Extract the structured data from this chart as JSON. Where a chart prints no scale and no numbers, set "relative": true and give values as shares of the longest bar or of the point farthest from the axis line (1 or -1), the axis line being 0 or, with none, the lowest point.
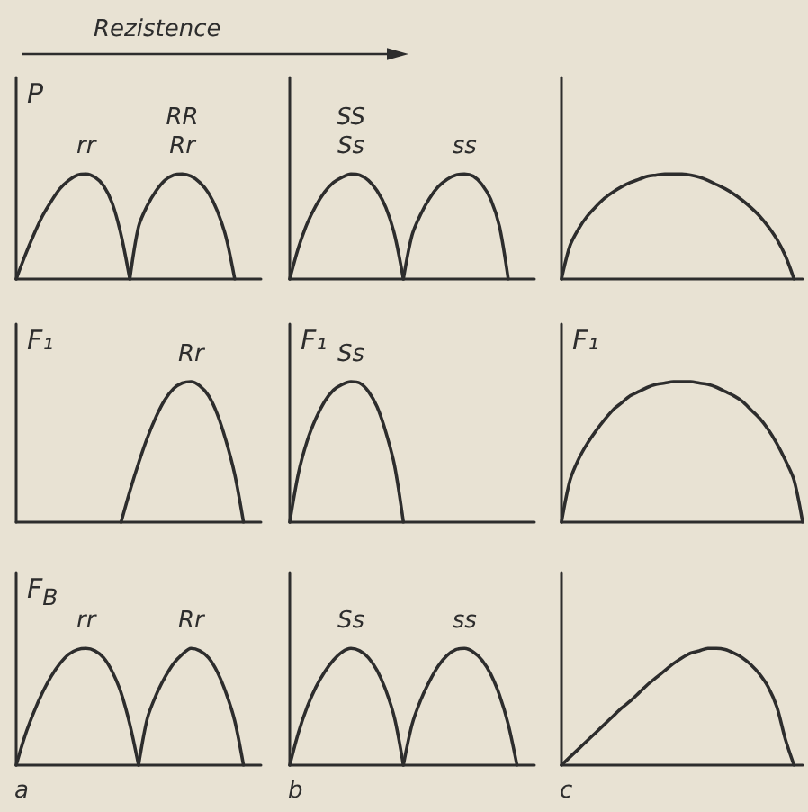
{
  "chart_data": [
    {
      "type": "line",
      "relative": true,
      "marker": "none",
      "title": "P",
      "annotations": [
        "Rezistence"
      ],
      "categories": [
        null,
        null,
        null,
        null,
        null,
        null,
        null,
        null,
        null,
        null,
        null,
        null,
        null,
        null,
        null,
        null,
        null,
        null,
        null,
        null,
        null,
        null,
        null,
        null,
        null,
        null,
        null,
        null,
        null
      ],
      "series": [
        {
          "name": "rr",
          "color": "#2d2d2d",
          "values": [
            0,
            0.22,
            0.42,
            0.6,
            0.74,
            0.86,
            0.94,
            0.99,
            1,
            0.97,
            0.89,
            0.72,
            0.42,
            0,
            null,
            null,
            null,
            null,
            null,
            null,
            null,
            null,
            null,
            null,
            null,
            null,
            null,
            null,
            null
          ]
        },
        {
          "name": "RR\nRr",
          "color": "#2d2d2d",
          "values": [
            null,
            null,
            null,
            null,
            null,
            null,
            null,
            null,
            null,
            null,
            null,
            null,
            null,
            0,
            0.5,
            0.7,
            0.84,
            0.94,
            0.99,
            1,
            0.98,
            0.92,
            0.82,
            0.65,
            0.4,
            0,
            null,
            null,
            null
          ]
        }
      ]
    },
    {
      "type": "line",
      "relative": true,
      "marker": "none",
      "categories": [
        null,
        null,
        null,
        null,
        null,
        null,
        null,
        null,
        null,
        null,
        null,
        null,
        null,
        null,
        null,
        null,
        null,
        null,
        null,
        null,
        null,
        null,
        null,
        null,
        null,
        null,
        null,
        null,
        null
      ],
      "series": [
        {
          "name": "SS\nSs",
          "color": "#2d2d2d",
          "values": [
            0,
            0.3,
            0.53,
            0.7,
            0.83,
            0.92,
            0.97,
            1,
            0.99,
            0.94,
            0.84,
            0.68,
            0.42,
            0,
            null,
            null,
            null,
            null,
            null,
            null,
            null,
            null,
            null,
            null,
            null,
            null,
            null,
            null,
            null
          ]
        },
        {
          "name": "ss",
          "color": "#2d2d2d",
          "values": [
            null,
            null,
            null,
            null,
            null,
            null,
            null,
            null,
            null,
            null,
            null,
            null,
            null,
            0,
            0.42,
            0.62,
            0.77,
            0.88,
            0.95,
            0.99,
            1,
            0.98,
            0.9,
            0.76,
            0.5,
            0,
            null,
            null,
            null
          ]
        }
      ]
    },
    {
      "type": "line",
      "relative": true,
      "marker": "none",
      "categories": [
        null,
        null,
        null,
        null,
        null,
        null,
        null,
        null,
        null,
        null,
        null,
        null,
        null,
        null,
        null,
        null,
        null,
        null,
        null,
        null,
        null,
        null,
        null,
        null,
        null,
        null,
        null,
        null,
        null
      ],
      "series": [
        {
          "color": "#2d2d2d",
          "values": [
            0,
            0.32,
            0.48,
            0.6,
            0.69,
            0.77,
            0.83,
            0.88,
            0.92,
            0.95,
            0.98,
            0.99,
            1,
            1,
            1,
            0.99,
            0.97,
            0.94,
            0.9,
            0.86,
            0.81,
            0.75,
            0.68,
            0.6,
            0.5,
            0.38,
            0.22,
            0,
            null
          ]
        }
      ]
    },
    {
      "type": "line",
      "relative": true,
      "marker": "none",
      "title": "F₁",
      "categories": [
        null,
        null,
        null,
        null,
        null,
        null,
        null,
        null,
        null,
        null,
        null,
        null,
        null,
        null,
        null,
        null,
        null,
        null,
        null,
        null,
        null,
        null,
        null,
        null,
        null,
        null,
        null,
        null,
        null
      ],
      "series": [
        {
          "name": "Rr",
          "color": "#2d2d2d",
          "values": [
            null,
            null,
            null,
            null,
            null,
            null,
            null,
            null,
            null,
            null,
            null,
            null,
            0,
            0.22,
            0.42,
            0.6,
            0.75,
            0.87,
            0.95,
            0.99,
            1,
            0.97,
            0.9,
            0.77,
            0.58,
            0.34,
            0,
            null,
            null
          ]
        }
      ]
    },
    {
      "type": "line",
      "relative": true,
      "marker": "none",
      "title": "F₁",
      "categories": [
        null,
        null,
        null,
        null,
        null,
        null,
        null,
        null,
        null,
        null,
        null,
        null,
        null,
        null,
        null,
        null,
        null,
        null,
        null,
        null,
        null,
        null,
        null,
        null,
        null,
        null,
        null,
        null,
        null
      ],
      "series": [
        {
          "name": "Ss",
          "color": "#2d2d2d",
          "values": [
            0,
            0.35,
            0.58,
            0.74,
            0.86,
            0.94,
            0.98,
            1,
            0.99,
            0.93,
            0.82,
            0.64,
            0.4,
            0,
            null,
            null,
            null,
            null,
            null,
            null,
            null,
            null,
            null,
            null,
            null,
            null,
            null,
            null,
            null
          ]
        }
      ]
    },
    {
      "type": "line",
      "relative": true,
      "marker": "none",
      "title": "F₁",
      "categories": [
        null,
        null,
        null,
        null,
        null,
        null,
        null,
        null,
        null,
        null,
        null,
        null,
        null,
        null,
        null,
        null,
        null,
        null,
        null,
        null,
        null,
        null,
        null,
        null,
        null,
        null,
        null,
        null,
        null
      ],
      "series": [
        {
          "color": "#2d2d2d",
          "values": [
            0,
            0.3,
            0.45,
            0.56,
            0.65,
            0.73,
            0.8,
            0.85,
            0.9,
            0.93,
            0.96,
            0.98,
            0.99,
            1,
            1,
            1,
            0.99,
            0.98,
            0.96,
            0.93,
            0.9,
            0.86,
            0.8,
            0.74,
            0.66,
            0.56,
            0.44,
            0.3,
            0
          ]
        }
      ]
    },
    {
      "type": "line",
      "relative": true,
      "marker": "none",
      "title": "F$_{B}$",
      "annotations": [
        "a"
      ],
      "categories": [
        null,
        null,
        null,
        null,
        null,
        null,
        null,
        null,
        null,
        null,
        null,
        null,
        null,
        null,
        null,
        null,
        null,
        null,
        null,
        null,
        null,
        null,
        null,
        null,
        null,
        null,
        null,
        null,
        null
      ],
      "series": [
        {
          "name": "rr",
          "color": "#2d2d2d",
          "values": [
            0,
            0.25,
            0.45,
            0.62,
            0.76,
            0.87,
            0.95,
            0.99,
            1,
            0.98,
            0.92,
            0.8,
            0.62,
            0.35,
            0,
            null,
            null,
            null,
            null,
            null,
            null,
            null,
            null,
            null,
            null,
            null,
            null,
            null,
            null
          ]
        },
        {
          "name": "Rr",
          "color": "#2d2d2d",
          "values": [
            null,
            null,
            null,
            null,
            null,
            null,
            null,
            null,
            null,
            null,
            null,
            null,
            null,
            null,
            0,
            0.4,
            0.6,
            0.75,
            0.87,
            0.95,
            1,
            0.98,
            0.92,
            0.8,
            0.62,
            0.38,
            0,
            null,
            null
          ]
        }
      ]
    },
    {
      "type": "line",
      "relative": true,
      "marker": "none",
      "annotations": [
        "b"
      ],
      "categories": [
        null,
        null,
        null,
        null,
        null,
        null,
        null,
        null,
        null,
        null,
        null,
        null,
        null,
        null,
        null,
        null,
        null,
        null,
        null,
        null,
        null,
        null,
        null,
        null,
        null,
        null,
        null,
        null,
        null
      ],
      "series": [
        {
          "name": "Ss",
          "color": "#2d2d2d",
          "values": [
            0,
            0.28,
            0.5,
            0.67,
            0.8,
            0.9,
            0.97,
            1,
            0.98,
            0.92,
            0.81,
            0.64,
            0.4,
            0,
            null,
            null,
            null,
            null,
            null,
            null,
            null,
            null,
            null,
            null,
            null,
            null,
            null,
            null,
            null
          ]
        },
        {
          "name": "ss",
          "color": "#2d2d2d",
          "values": [
            null,
            null,
            null,
            null,
            null,
            null,
            null,
            null,
            null,
            null,
            null,
            null,
            null,
            0,
            0.35,
            0.56,
            0.72,
            0.85,
            0.94,
            0.99,
            1,
            0.97,
            0.9,
            0.78,
            0.6,
            0.35,
            0,
            null,
            null
          ]
        }
      ]
    },
    {
      "type": "line",
      "relative": true,
      "marker": "none",
      "annotations": [
        "c"
      ],
      "categories": [
        null,
        null,
        null,
        null,
        null,
        null,
        null,
        null,
        null,
        null,
        null,
        null,
        null,
        null,
        null,
        null,
        null,
        null,
        null,
        null,
        null,
        null,
        null,
        null,
        null,
        null,
        null,
        null,
        null
      ],
      "series": [
        {
          "color": "#2d2d2d",
          "values": [
            0,
            0.07,
            0.14,
            0.21,
            0.28,
            0.35,
            0.42,
            0.49,
            0.55,
            0.62,
            0.69,
            0.75,
            0.81,
            0.87,
            0.92,
            0.96,
            0.98,
            1,
            1,
            0.99,
            0.96,
            0.92,
            0.86,
            0.78,
            0.67,
            0.5,
            0.22,
            0,
            null
          ]
        }
      ]
    }
  ]
}
